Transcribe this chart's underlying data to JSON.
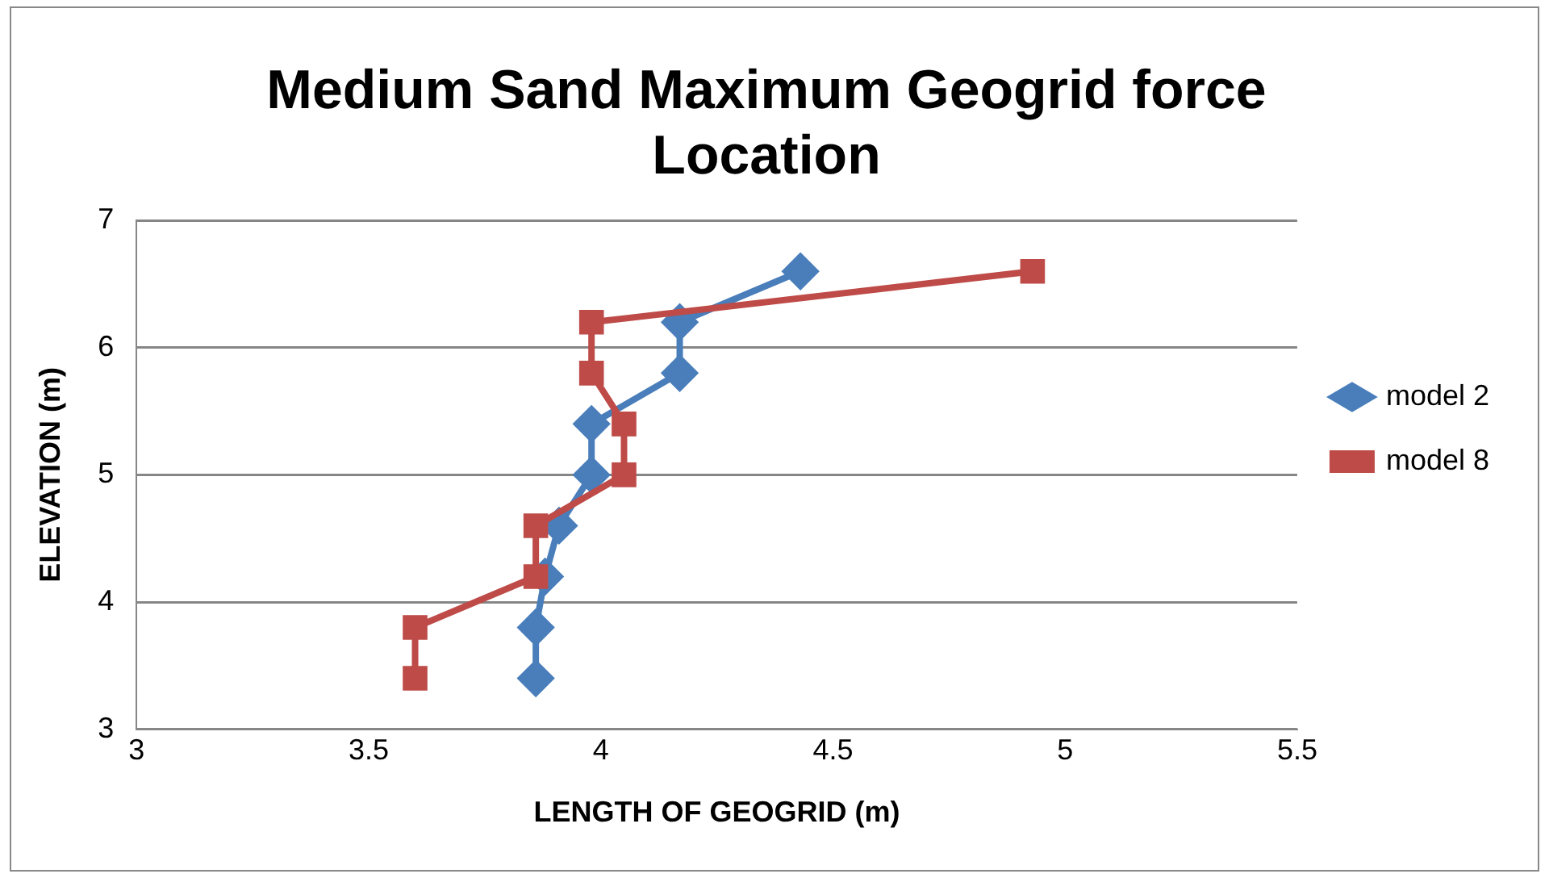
{
  "chart_data": {
    "type": "line",
    "title": "Medium Sand Maximum Geogrid force Location",
    "xlabel": "LENGTH OF GEOGRID (m)",
    "ylabel": "ELEVATION (m)",
    "xlim": [
      3,
      5.5
    ],
    "xticks": [
      3,
      3.5,
      4,
      4.5,
      5,
      5.5
    ],
    "ylim": [
      3,
      7
    ],
    "yticks": [
      3,
      4,
      5,
      6,
      7
    ],
    "grid": "y",
    "legend": "right",
    "series": [
      {
        "name": "model 2",
        "color": "#4a7ebb",
        "marker": "diamond",
        "x": [
          4.43,
          4.17,
          4.17,
          3.98,
          3.98,
          3.91,
          3.88,
          3.86,
          3.86
        ],
        "values": [
          6.6,
          6.2,
          5.8,
          5.4,
          5.0,
          4.6,
          4.2,
          3.8,
          3.4
        ]
      },
      {
        "name": "model 8",
        "color": "#be4b48",
        "marker": "square",
        "x": [
          4.93,
          3.98,
          3.98,
          4.05,
          4.05,
          3.86,
          3.86,
          3.6,
          3.6
        ],
        "values": [
          6.6,
          6.2,
          5.8,
          5.4,
          5.0,
          4.6,
          4.2,
          3.8,
          3.4
        ]
      }
    ]
  }
}
